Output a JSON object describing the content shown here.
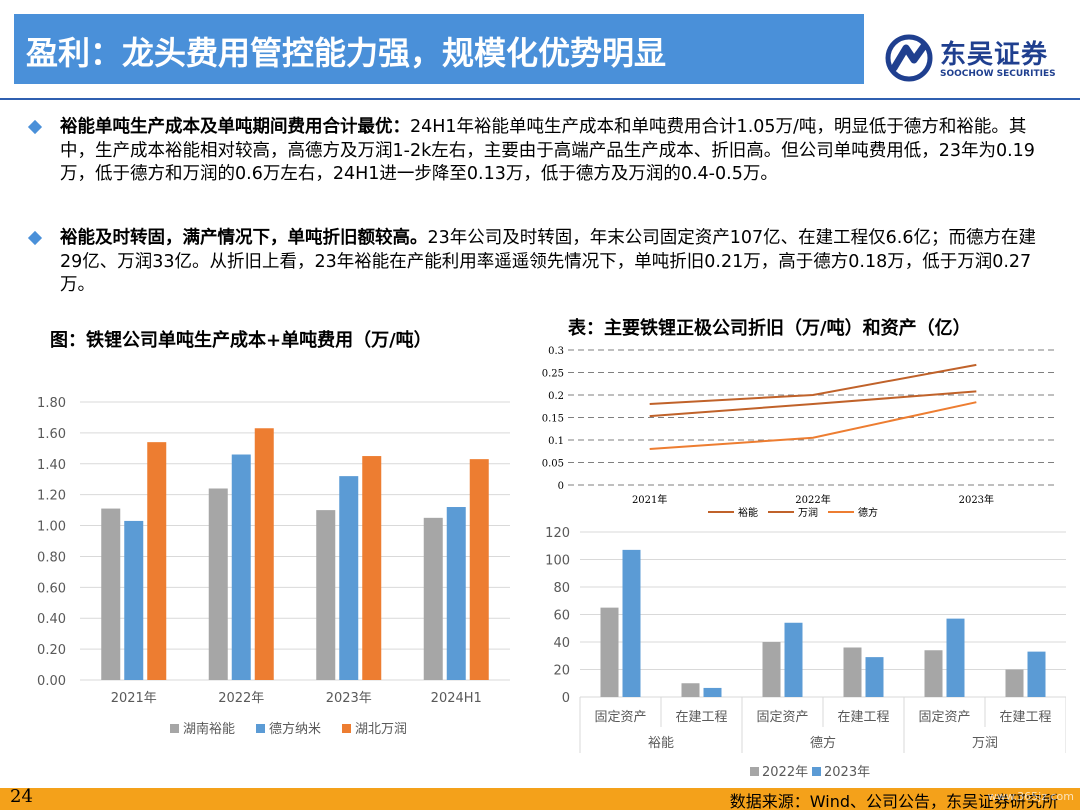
{
  "header": {
    "title": "盈利：龙头费用管控能力强，规模化优势明显",
    "logo_name": "东吴证券",
    "logo_sub": "SOOCHOW SECURITIES",
    "logo_icon": "soochow-logo-icon"
  },
  "bullets": [
    {
      "lead": "裕能单吨生产成本及单吨期间费用合计最优：",
      "text": "24H1年裕能单吨生产成本和单吨费用合计1.05万/吨，明显低于德方和裕能。其中，生产成本裕能相对较高，高德方及万润1-2k左右，主要由于高端产品生产成本、折旧高。但公司单吨费用低，23年为0.19万，低于德方和万润的0.6万左右，24H1进一步降至0.13万，低于德方及万润的0.4-0.5万。"
    },
    {
      "lead": "裕能及时转固，满产情况下，单吨折旧额较高。",
      "text": "23年公司及时转固，年末公司固定资产107亿、在建工程仅6.6亿；而德方在建29亿、万润33亿。从折旧上看，23年裕能在产能利用率遥遥领先情况下，单吨折旧0.21万，高于德方0.18万，低于万润0.27万。"
    }
  ],
  "chart_data": [
    {
      "type": "bar",
      "title": "图：铁锂公司单吨生产成本+单吨费用（万/吨）",
      "categories": [
        "2021年",
        "2022年",
        "2023年",
        "2024H1"
      ],
      "series": [
        {
          "name": "湖南裕能",
          "values": [
            1.11,
            1.24,
            1.1,
            1.05
          ],
          "color": "#a6a6a6"
        },
        {
          "name": "德方纳米",
          "values": [
            1.03,
            1.46,
            1.32,
            1.12
          ],
          "color": "#5b9bd5"
        },
        {
          "name": "湖北万润",
          "values": [
            1.54,
            1.63,
            1.45,
            1.43
          ],
          "color": "#ed7d31"
        }
      ],
      "ylim": [
        0,
        1.8
      ],
      "yticks": [
        "0.00",
        "0.20",
        "0.40",
        "0.60",
        "0.80",
        "1.00",
        "1.20",
        "1.40",
        "1.60",
        "1.80"
      ],
      "grid": true,
      "legend": "bottom"
    },
    {
      "type": "line",
      "title": "表：主要铁锂正极公司折旧（万/吨）和资产（亿）",
      "categories": [
        "2021年",
        "2022年",
        "2023年"
      ],
      "series": [
        {
          "name": "裕能",
          "values": [
            0.153,
            0.18,
            0.208
          ],
          "color": "#c0622a"
        },
        {
          "name": "万润",
          "values": [
            0.18,
            0.2,
            0.267
          ],
          "color": "#c0622a"
        },
        {
          "name": "德方",
          "values": [
            0.08,
            0.105,
            0.184
          ],
          "color": "#ed7d31"
        }
      ],
      "ylim": [
        0,
        0.3
      ],
      "yticks": [
        "0",
        "0.05",
        "0.1",
        "0.15",
        "0.2",
        "0.25",
        "0.3"
      ],
      "grid": true,
      "legend": "bottom"
    },
    {
      "type": "bar",
      "groups": [
        "裕能",
        "德方",
        "万润"
      ],
      "categories": [
        "固定资产",
        "在建工程",
        "固定资产",
        "在建工程",
        "固定资产",
        "在建工程"
      ],
      "series": [
        {
          "name": "2022年",
          "values": [
            65,
            10,
            40,
            36,
            34,
            20
          ],
          "color": "#a6a6a6"
        },
        {
          "name": "2023年",
          "values": [
            107,
            6.6,
            54,
            29,
            57,
            33
          ],
          "color": "#5b9bd5"
        }
      ],
      "ylim": [
        0,
        120
      ],
      "yticks": [
        "0",
        "20",
        "40",
        "60",
        "80",
        "100",
        "120"
      ],
      "grid": true,
      "legend": "bottom"
    }
  ],
  "footer": {
    "page_number": "24",
    "source": "数据来源：Wind、公司公告，东吴证券研究所",
    "watermark": "www.365jz.com"
  }
}
